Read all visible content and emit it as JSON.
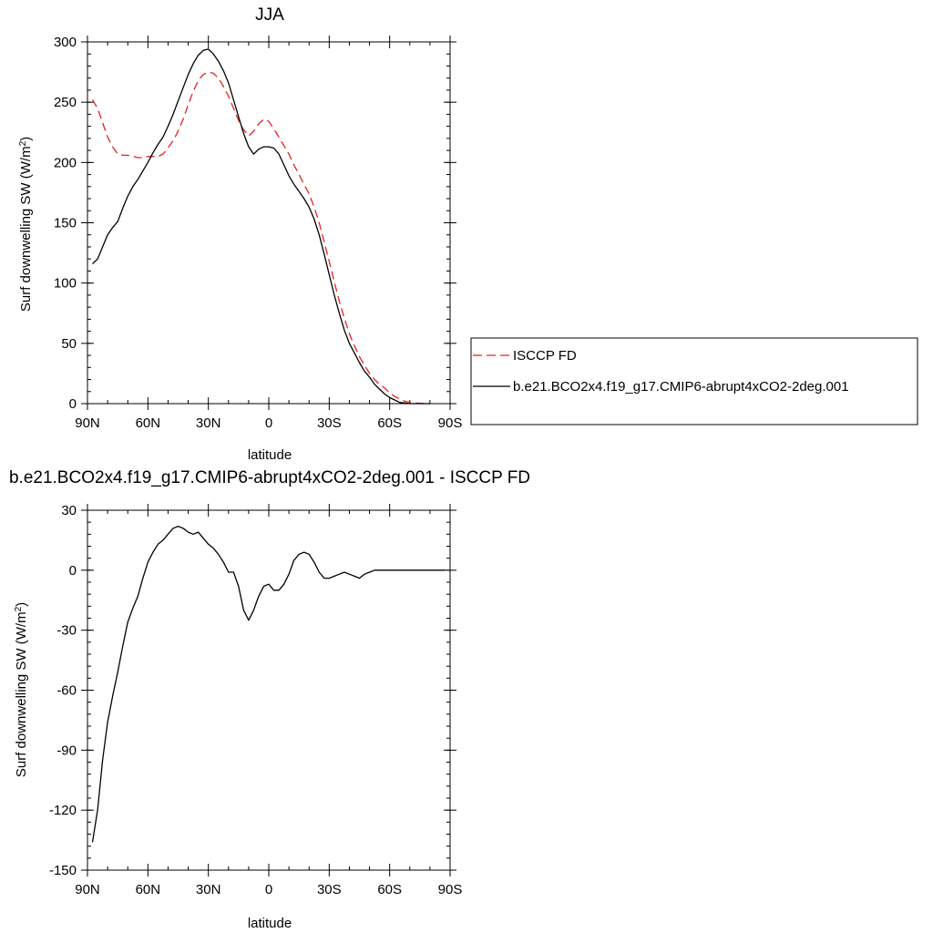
{
  "chart_data": [
    {
      "type": "line",
      "title": "JJA",
      "xlabel": "latitude",
      "ylabel": "Surf downwelling SW (W/m",
      "ylabel_sup": "2",
      "ylabel_close": ")",
      "xlim": [
        90,
        -90
      ],
      "ylim": [
        0,
        300
      ],
      "x_ticks": [
        90,
        60,
        30,
        0,
        -30,
        -60,
        -90
      ],
      "x_tick_labels": [
        "90N",
        "60N",
        "30N",
        "0",
        "30S",
        "60S",
        "90S"
      ],
      "y_ticks": [
        0,
        50,
        100,
        150,
        200,
        250,
        300
      ],
      "y_tick_labels": [
        "0",
        "50",
        "100",
        "150",
        "200",
        "250",
        "300"
      ],
      "legend_position": "right",
      "series": [
        {
          "name": "ISCCP FD",
          "color": "#e8211f",
          "dash": "dashed",
          "x": [
            87.5,
            85,
            82.5,
            80,
            77.5,
            75,
            72.5,
            70,
            67.5,
            65,
            62.5,
            60,
            57.5,
            55,
            52.5,
            50,
            47.5,
            45,
            42.5,
            40,
            37.5,
            35,
            32.5,
            30,
            27.5,
            25,
            22.5,
            20,
            17.5,
            15,
            12.5,
            10,
            7.5,
            5,
            2.5,
            0,
            -2.5,
            -5,
            -7.5,
            -10,
            -12.5,
            -15,
            -17.5,
            -20,
            -22.5,
            -25,
            -27.5,
            -30,
            -32.5,
            -35,
            -37.5,
            -40,
            -42.5,
            -45,
            -47.5,
            -50,
            -52.5,
            -55,
            -57.5,
            -60,
            -62.5,
            -65,
            -67.5,
            -70,
            -72.5,
            -75,
            -77.5,
            -80
          ],
          "y": [
            252,
            245,
            233,
            221,
            213,
            207,
            206,
            206,
            205,
            204,
            204,
            205,
            205,
            205,
            207,
            212,
            218,
            226,
            236,
            248,
            259,
            268,
            273,
            275,
            274,
            270,
            263,
            255,
            245,
            235,
            227,
            222,
            226,
            232,
            236,
            234,
            228,
            221,
            214,
            207,
            198,
            190,
            182,
            174,
            163,
            150,
            134,
            118,
            101,
            85,
            71,
            58,
            48,
            39,
            32,
            25,
            20,
            16,
            13,
            9,
            6,
            4,
            2,
            1,
            0.5,
            0.2,
            0,
            0
          ]
        },
        {
          "name": "b.e21.BCO2x4.f19_g17.CMIP6-abrupt4xCO2-2deg.001",
          "color": "#000000",
          "dash": "solid",
          "x": [
            87.5,
            85,
            82.5,
            80,
            77.5,
            75,
            72.5,
            70,
            67.5,
            65,
            62.5,
            60,
            57.5,
            55,
            52.5,
            50,
            47.5,
            45,
            42.5,
            40,
            37.5,
            35,
            32.5,
            30,
            27.5,
            25,
            22.5,
            20,
            17.5,
            15,
            12.5,
            10,
            7.5,
            5,
            2.5,
            0,
            -2.5,
            -5,
            -7.5,
            -10,
            -12.5,
            -15,
            -17.5,
            -20,
            -22.5,
            -25,
            -27.5,
            -30,
            -32.5,
            -35,
            -37.5,
            -40,
            -42.5,
            -45,
            -47.5,
            -50,
            -52.5,
            -55,
            -57.5,
            -60,
            -62.5,
            -65,
            -67.5,
            -70,
            -72.5,
            -75,
            -77.5,
            -80
          ],
          "y": [
            116,
            120,
            130,
            140,
            146,
            151,
            162,
            172,
            180,
            186,
            193,
            200,
            208,
            215,
            221,
            230,
            240,
            251,
            262,
            273,
            282,
            289,
            293,
            294,
            290,
            284,
            276,
            266,
            252,
            238,
            224,
            213,
            207,
            211,
            213,
            213,
            212,
            207,
            198,
            189,
            182,
            176,
            170,
            163,
            153,
            140,
            124,
            107,
            90,
            75,
            61,
            50,
            42,
            34,
            27,
            22,
            16,
            12,
            8,
            5,
            3,
            1,
            0.5,
            0,
            0,
            0,
            0,
            0
          ]
        }
      ]
    },
    {
      "type": "line",
      "title": "b.e21.BCO2x4.f19_g17.CMIP6-abrupt4xCO2-2deg.001 - ISCCP FD",
      "xlabel": "latitude",
      "ylabel": "Surf downwelling SW (W/m",
      "ylabel_sup": "2",
      "ylabel_close": ")",
      "xlim": [
        90,
        -90
      ],
      "ylim": [
        -150,
        30
      ],
      "x_ticks": [
        90,
        60,
        30,
        0,
        -30,
        -60,
        -90
      ],
      "x_tick_labels": [
        "90N",
        "60N",
        "30N",
        "0",
        "30S",
        "60S",
        "90S"
      ],
      "y_ticks": [
        -150,
        -120,
        -90,
        -60,
        -30,
        0,
        30
      ],
      "y_tick_labels": [
        "-150",
        "-120",
        "-90",
        "-60",
        "-30",
        "0",
        "30"
      ],
      "series": [
        {
          "color": "#000000",
          "dash": "solid",
          "x": [
            87.5,
            85,
            82.5,
            80,
            77.5,
            75,
            72.5,
            70,
            67.5,
            65,
            62.5,
            60,
            57.5,
            55,
            52.5,
            50,
            47.5,
            45,
            42.5,
            40,
            37.5,
            35,
            32.5,
            30,
            27.5,
            25,
            22.5,
            20,
            17.5,
            15,
            12.5,
            10,
            7.5,
            5,
            2.5,
            0,
            -2.5,
            -5,
            -7.5,
            -10,
            -12.5,
            -15,
            -17.5,
            -20,
            -22.5,
            -25,
            -27.5,
            -30,
            -32.5,
            -35,
            -37.5,
            -40,
            -42.5,
            -45,
            -47.5,
            -50,
            -52.5,
            -55,
            -57.5,
            -60,
            -62.5,
            -65,
            -67.5,
            -70,
            -72.5,
            -75,
            -77.5,
            -80,
            -82.5,
            -85,
            -87.5
          ],
          "y": [
            -136,
            -120,
            -95,
            -76,
            -63,
            -51,
            -38,
            -26,
            -19,
            -13,
            -4,
            4,
            9,
            13,
            15,
            18,
            21,
            22,
            21,
            19,
            18,
            19,
            16,
            13,
            11,
            8,
            4,
            -1,
            -1,
            -8,
            -20,
            -25,
            -20,
            -13,
            -8,
            -7,
            -10,
            -10,
            -7,
            -2,
            5,
            8,
            9,
            8,
            4,
            -1,
            -4,
            -4,
            -3,
            -2,
            -1,
            -2,
            -3,
            -4,
            -2,
            -1,
            0,
            0,
            0,
            0,
            0,
            0,
            0,
            0,
            0,
            0,
            0,
            0,
            0,
            0,
            0
          ]
        }
      ]
    }
  ]
}
